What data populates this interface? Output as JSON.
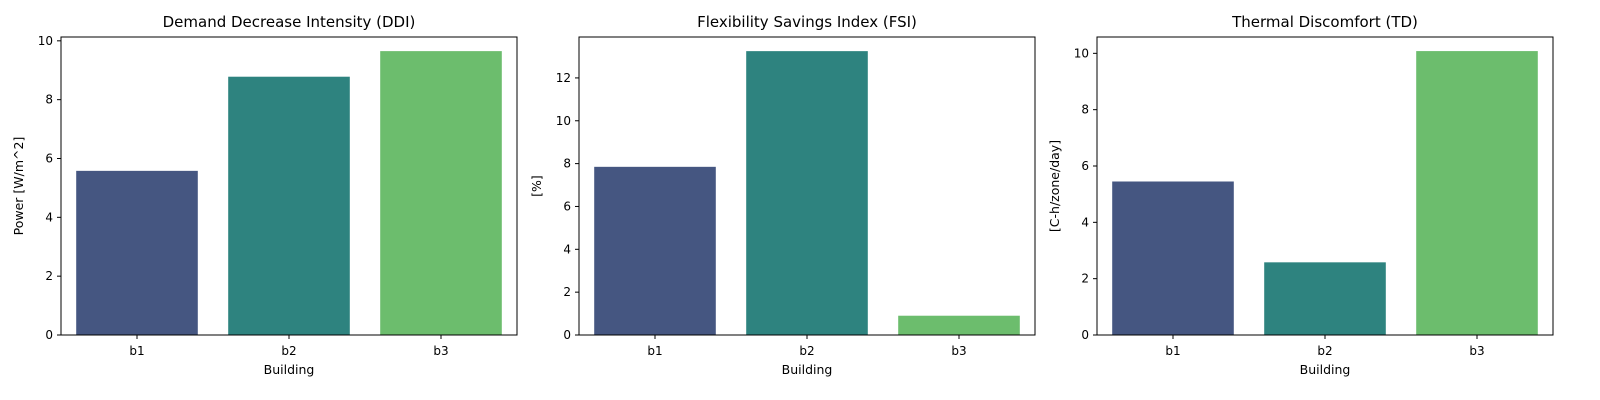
{
  "chart_data": [
    {
      "type": "bar",
      "title": "Demand Decrease Intensity (DDI)",
      "xlabel": "Building",
      "ylabel": "Power [W/m^2]",
      "categories": [
        "b1",
        "b2",
        "b3"
      ],
      "values": [
        5.58,
        8.78,
        9.65
      ],
      "colors": [
        "#455681",
        "#2e837f",
        "#6cbd6d"
      ],
      "ylim": [
        0,
        10.13
      ],
      "yticks": [
        0,
        2,
        4,
        6,
        8,
        10
      ],
      "grid": false
    },
    {
      "type": "bar",
      "title": "Flexibility Savings Index (FSI)",
      "xlabel": "Building",
      "ylabel": "[%]",
      "categories": [
        "b1",
        "b2",
        "b3"
      ],
      "values": [
        7.85,
        13.25,
        0.9
      ],
      "colors": [
        "#455681",
        "#2e837f",
        "#6cbd6d"
      ],
      "ylim": [
        0,
        13.91
      ],
      "yticks": [
        0,
        2,
        4,
        6,
        8,
        10,
        12
      ],
      "grid": false
    },
    {
      "type": "bar",
      "title": "Thermal Discomfort (TD)",
      "xlabel": "Building",
      "ylabel": "[C-h/zone/day]",
      "categories": [
        "b1",
        "b2",
        "b3"
      ],
      "values": [
        5.45,
        2.58,
        10.08
      ],
      "colors": [
        "#455681",
        "#2e837f",
        "#6cbd6d"
      ],
      "ylim": [
        0,
        10.58
      ],
      "yticks": [
        0,
        2,
        4,
        6,
        8,
        10
      ],
      "grid": false
    }
  ]
}
